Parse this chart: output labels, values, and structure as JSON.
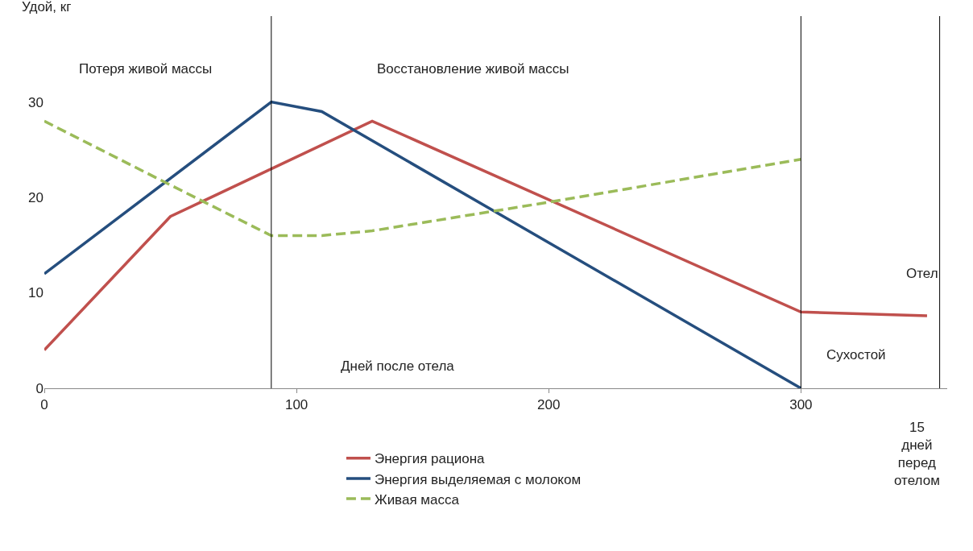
{
  "chart_data": {
    "type": "line",
    "ylabel": "Удой, кг",
    "xlim": [
      0,
      358
    ],
    "ylim": [
      0,
      39
    ],
    "xticks": [
      0,
      100,
      200,
      300
    ],
    "yticks": [
      0,
      10,
      20,
      30
    ],
    "legend": "bottom",
    "marker": "none",
    "series": [
      {
        "name": "Энергия рациона",
        "color": "#c0504d",
        "x": [
          0,
          50,
          130,
          300,
          350
        ],
        "values": [
          4,
          18,
          28,
          8,
          7.6
        ]
      },
      {
        "name": "Энергия выделяемая с молоком",
        "color": "#254e7e",
        "x": [
          0,
          90,
          110,
          300
        ],
        "values": [
          12,
          30,
          29,
          0
        ]
      },
      {
        "name": "Живая масса",
        "color": "#9bbb59",
        "line_style": "dashed",
        "x": [
          0,
          50,
          90,
          110,
          130,
          200,
          300
        ],
        "values": [
          28,
          21.3,
          16,
          16,
          16.5,
          19.5,
          24
        ]
      }
    ],
    "ref_lines": [
      {
        "axis": "x",
        "value": 90,
        "color": "#000000"
      },
      {
        "axis": "x",
        "value": 300,
        "color": "#000000"
      },
      {
        "axis": "x",
        "value": 355,
        "color": "#000000"
      }
    ],
    "annotations": [
      "Потеря живой массы",
      "Восстановление живой массы",
      "Дней после отела",
      "Сухостой",
      "Отел",
      "15\nдней\nперед\nотелом"
    ]
  }
}
